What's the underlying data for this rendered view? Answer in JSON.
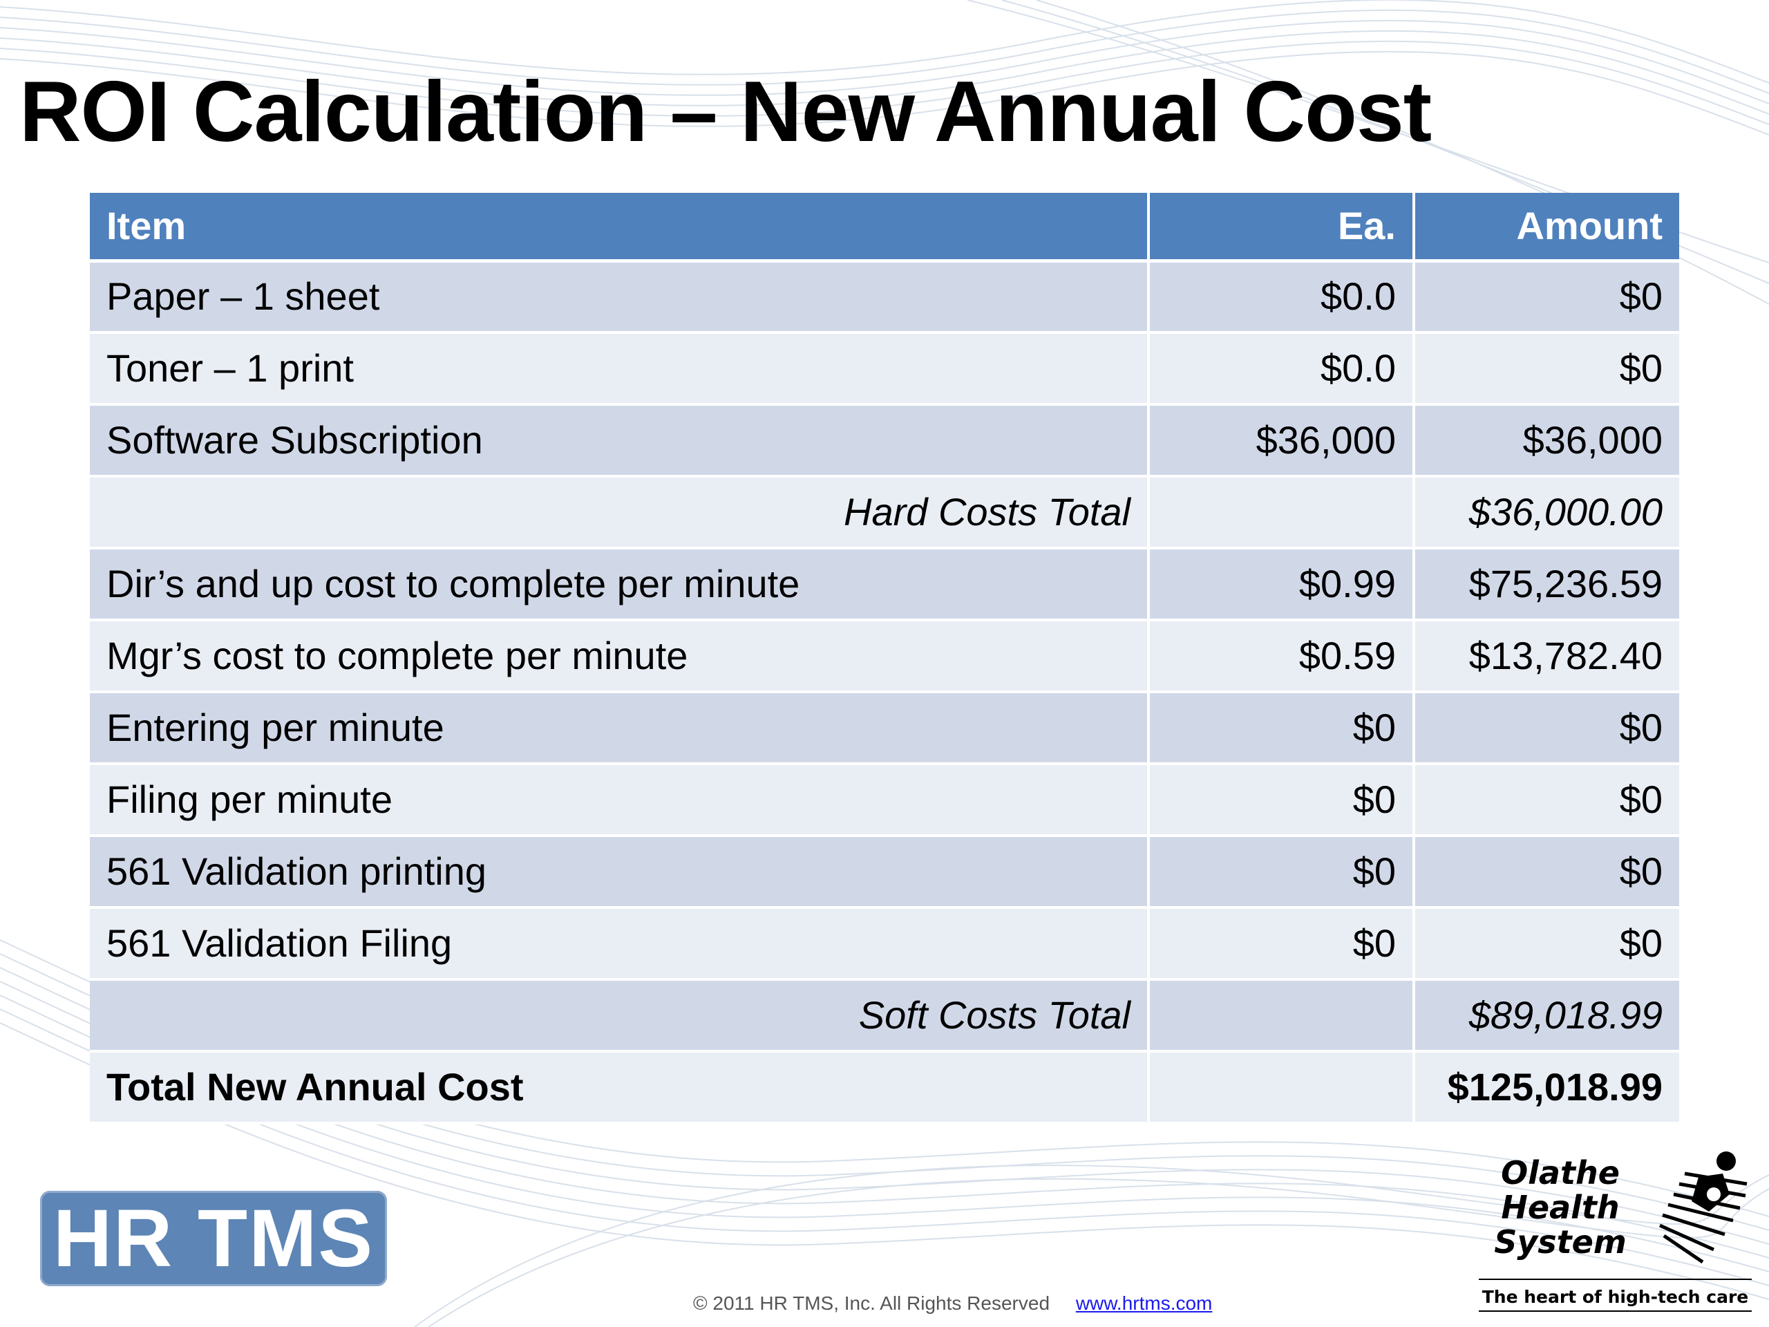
{
  "slide": {
    "title": "ROI Calculation – New Annual Cost"
  },
  "table": {
    "headers": {
      "item": "Item",
      "each": "Ea.",
      "amount": "Amount"
    },
    "rows": [
      {
        "item": "Paper – 1 sheet",
        "each": "$0.0",
        "amount": "$0"
      },
      {
        "item": "Toner – 1 print",
        "each": "$0.0",
        "amount": "$0"
      },
      {
        "item": "Software Subscription",
        "each": "$36,000",
        "amount": "$36,000"
      },
      {
        "item": "Hard Costs Total",
        "each": "",
        "amount": "$36,000.00"
      },
      {
        "item": "Dir’s and up cost to complete per minute",
        "each": "$0.99",
        "amount": "$75,236.59"
      },
      {
        "item": "Mgr’s cost to complete per minute",
        "each": "$0.59",
        "amount": "$13,782.40"
      },
      {
        "item": "Entering per minute",
        "each": "$0",
        "amount": "$0"
      },
      {
        "item": "Filing per minute",
        "each": "$0",
        "amount": "$0"
      },
      {
        "item": "561 Validation printing",
        "each": "$0",
        "amount": "$0"
      },
      {
        "item": "561 Validation Filing",
        "each": "$0",
        "amount": "$0"
      },
      {
        "item": "Soft Costs Total",
        "each": "",
        "amount": "$89,018.99"
      },
      {
        "item": "Total New Annual Cost",
        "each": "",
        "amount": "$125,018.99"
      }
    ]
  },
  "logos": {
    "hrtms": "HR TMS",
    "olathe": {
      "line1": "Olathe",
      "line2": "Health",
      "line3": "System",
      "tagline": "The heart of high-tech care"
    }
  },
  "footer": {
    "copyright": "© 2011 HR TMS, Inc.   All Rights Reserved",
    "link": "www.hrtms.com"
  },
  "colors": {
    "header": "#4f81bd",
    "row_odd": "#d0d8e8",
    "row_even": "#e9edf4",
    "hrtms_logo": "#5d85b6",
    "link": "#1a1aee"
  }
}
